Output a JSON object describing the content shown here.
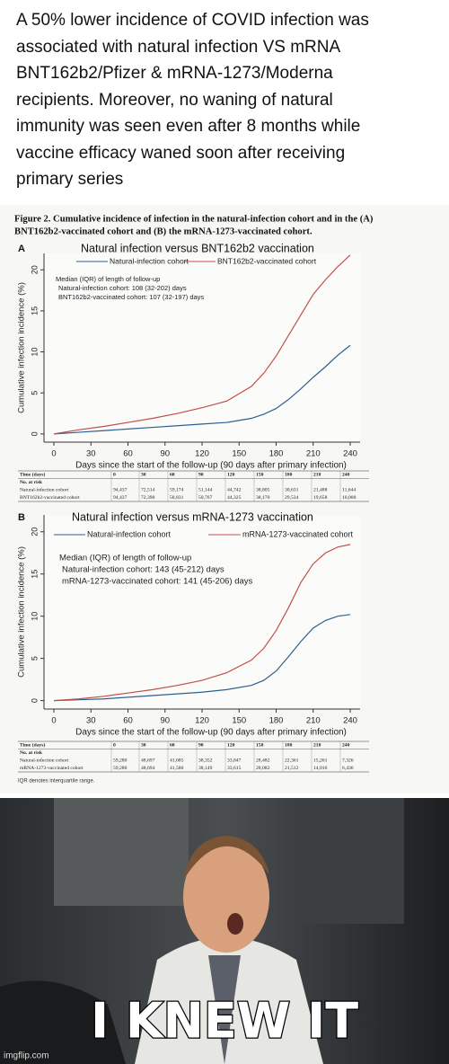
{
  "post": {
    "lines": [
      "A 50% lower incidence of COVID infection was",
      "associated with natural infection VS mRNA",
      "BNT162b2/Pfizer & mRNA-1273/Moderna",
      "recipients. Moreover, no waning of natural",
      "immunity was seen even after 8 months while",
      "vaccine efficacy waned soon after receiving",
      "primary series"
    ]
  },
  "figure": {
    "caption": [
      "Figure 2. Cumulative incidence of infection in the natural-infection cohort and in the (A)",
      "BNT162b2-vaccinated cohort and (B) the mRNA-1273-vaccinated cohort."
    ],
    "footnote": "IQR denotes interquartile range."
  },
  "chart_data": [
    {
      "type": "line",
      "panel": "A",
      "title": "Natural infection versus BNT162b2 vaccination",
      "x_label": "Days since the start of the follow-up (90 days after primary infection)",
      "y_label": "Cumulative infection incidence (%)",
      "annotation": [
        "Median (IQR) of length of follow-up",
        "Natural-infection cohort: 108 (32-202) days",
        "BNT162b2-vaccinated cohort: 107 (32-197) days"
      ],
      "x": [
        0,
        20,
        40,
        60,
        80,
        100,
        120,
        140,
        160,
        170,
        180,
        190,
        200,
        210,
        220,
        230,
        240
      ],
      "series": [
        {
          "name": "Natural-infection cohort",
          "color": "#2d5f8f",
          "values": [
            0,
            0.2,
            0.4,
            0.6,
            0.8,
            1.0,
            1.2,
            1.4,
            1.9,
            2.4,
            3.1,
            4.2,
            5.5,
            6.9,
            8.2,
            9.6,
            10.8
          ]
        },
        {
          "name": "BNT162b2-vaccinated cohort",
          "color": "#c0504d",
          "values": [
            0,
            0.5,
            0.9,
            1.4,
            1.9,
            2.5,
            3.2,
            4.0,
            5.8,
            7.4,
            9.5,
            12.0,
            14.5,
            17.0,
            18.8,
            20.4,
            21.8
          ]
        }
      ],
      "xlim": [
        -8,
        248
      ],
      "ylim": [
        -1,
        22
      ],
      "xticks": [
        0,
        30,
        60,
        90,
        120,
        150,
        180,
        210,
        240
      ],
      "yticks": [
        0,
        5,
        10,
        15,
        20
      ]
    },
    {
      "type": "line",
      "panel": "B",
      "title": "Natural infection versus mRNA-1273 vaccination",
      "x_label": "Days since the start of the follow-up (90 days after primary infection)",
      "y_label": "Cumulative infection incidence (%)",
      "annotation": [
        "Median (IQR) of length of follow-up",
        "Natural-infection cohort: 143 (45-212) days",
        "mRNA-1273-vaccinated cohort: 141 (45-206) days"
      ],
      "x": [
        0,
        20,
        40,
        60,
        80,
        100,
        120,
        140,
        160,
        170,
        180,
        190,
        200,
        210,
        220,
        230,
        240
      ],
      "series": [
        {
          "name": "Natural-infection cohort",
          "color": "#2d5f8f",
          "values": [
            0,
            0.1,
            0.2,
            0.4,
            0.6,
            0.8,
            1.0,
            1.3,
            1.8,
            2.4,
            3.5,
            5.2,
            7.0,
            8.6,
            9.5,
            10.0,
            10.2
          ]
        },
        {
          "name": "mRNA-1273-vaccinated cohort",
          "color": "#c0504d",
          "values": [
            0,
            0.2,
            0.5,
            0.9,
            1.3,
            1.8,
            2.4,
            3.3,
            4.8,
            6.2,
            8.3,
            11.0,
            14.0,
            16.2,
            17.5,
            18.2,
            18.5
          ]
        }
      ],
      "xlim": [
        -8,
        248
      ],
      "ylim": [
        -1,
        22
      ],
      "xticks": [
        0,
        30,
        60,
        90,
        120,
        150,
        180,
        210,
        240
      ],
      "yticks": [
        0,
        5,
        10,
        15,
        20
      ]
    }
  ],
  "tables": [
    {
      "header": [
        "Time (days)",
        "0",
        "30",
        "60",
        "90",
        "120",
        "150",
        "180",
        "210",
        "240"
      ],
      "rows": [
        [
          "No. at risk"
        ],
        [
          "Natural-infection cohort",
          "94,437",
          "72,514",
          "59,174",
          "51,144",
          "44,742",
          "38,805",
          "30,631",
          "21,488",
          "11,644"
        ],
        [
          "BNT162b2-vaccinated cohort",
          "94,437",
          "72,390",
          "58,831",
          "50,767",
          "44,325",
          "38,170",
          "29,534",
          "19,658",
          "10,000"
        ]
      ]
    },
    {
      "header": [
        "Time (days)",
        "0",
        "30",
        "60",
        "90",
        "120",
        "150",
        "180",
        "210",
        "240"
      ],
      "rows": [
        [
          "No. at risk"
        ],
        [
          "Natural-infection cohort",
          "59,280",
          "48,697",
          "41,685",
          "38,352",
          "33,847",
          "28,482",
          "22,361",
          "15,261",
          "7,326"
        ],
        [
          "mRNA-1273-vaccinated cohort",
          "59,280",
          "48,694",
          "41,580",
          "38,149",
          "33,615",
          "28,082",
          "21,512",
          "14,016",
          "6,436"
        ]
      ]
    }
  ],
  "meme": {
    "caption": "I KNEW IT",
    "watermark": "imgflip.com"
  }
}
